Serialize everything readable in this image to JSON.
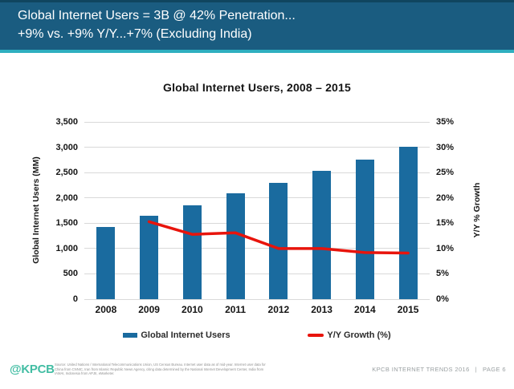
{
  "colors": {
    "header_bg": "#1A5C80",
    "header_top": "#10455F",
    "accent": "#2FAFC0",
    "bar": "#1A6B9F",
    "line": "#E8140C",
    "grid": "#D9D9D9",
    "logo": "#42BDA3"
  },
  "header": {
    "line1": "Global Internet Users = 3B @ 42% Penetration...",
    "line2": "+9% vs. +9% Y/Y...+7% (Excluding India)"
  },
  "chart": {
    "title": "Global Internet Users, 2008 – 2015",
    "left_axis_label": "Global Internet Users (MM)",
    "right_axis_label": "Y/Y % Growth",
    "legend": [
      {
        "label": "Global Internet Users"
      },
      {
        "label": "Y/Y Growth (%)"
      }
    ]
  },
  "chart_data": {
    "type": "combo",
    "title": "Global Internet Users, 2008 – 2015",
    "categories": [
      "2008",
      "2009",
      "2010",
      "2011",
      "2012",
      "2013",
      "2014",
      "2015"
    ],
    "series": [
      {
        "name": "Global Internet Users",
        "type": "bar",
        "axis": "left",
        "values": [
          1420,
          1640,
          1850,
          2090,
          2300,
          2530,
          2760,
          3010
        ]
      },
      {
        "name": "Y/Y Growth (%)",
        "type": "line",
        "axis": "right",
        "values": [
          null,
          15.3,
          12.8,
          13.1,
          10.0,
          10.0,
          9.2,
          9.1
        ]
      }
    ],
    "ylabel_left": "Global Internet Users (MM)",
    "ylabel_right": "Y/Y % Growth",
    "ylim_left": [
      0,
      3500
    ],
    "ylim_right": [
      0,
      35
    ],
    "grid": true,
    "legend_position": "bottom",
    "left_ticks": [
      {
        "value": 0,
        "label": "0"
      },
      {
        "value": 500,
        "label": "500"
      },
      {
        "value": 1000,
        "label": "1,000"
      },
      {
        "value": 1500,
        "label": "1,500"
      },
      {
        "value": 2000,
        "label": "2,000"
      },
      {
        "value": 2500,
        "label": "2,500"
      },
      {
        "value": 3000,
        "label": "3,000"
      },
      {
        "value": 3500,
        "label": "3,500"
      }
    ],
    "right_ticks": [
      {
        "value": 0,
        "label": "0%"
      },
      {
        "value": 5,
        "label": "5%"
      },
      {
        "value": 10,
        "label": "10%"
      },
      {
        "value": 15,
        "label": "15%"
      },
      {
        "value": 20,
        "label": "20%"
      },
      {
        "value": 25,
        "label": "25%"
      },
      {
        "value": 30,
        "label": "30%"
      },
      {
        "value": 35,
        "label": "35%"
      }
    ]
  },
  "footer": {
    "logo": "@KPCB",
    "source": "Source: United Nations / International Telecommunications Union, US Census Bureau. Internet user data as of mid-year. Internet user data for China from CNNIC, Iran from Islamic Republic News Agency, citing data determined by the National Internet Development Center, India from IAMAI, Indonesia from APJII, eMarketer.",
    "report": "KPCB INTERNET TRENDS 2016",
    "divider": "|",
    "page": "PAGE 6"
  }
}
